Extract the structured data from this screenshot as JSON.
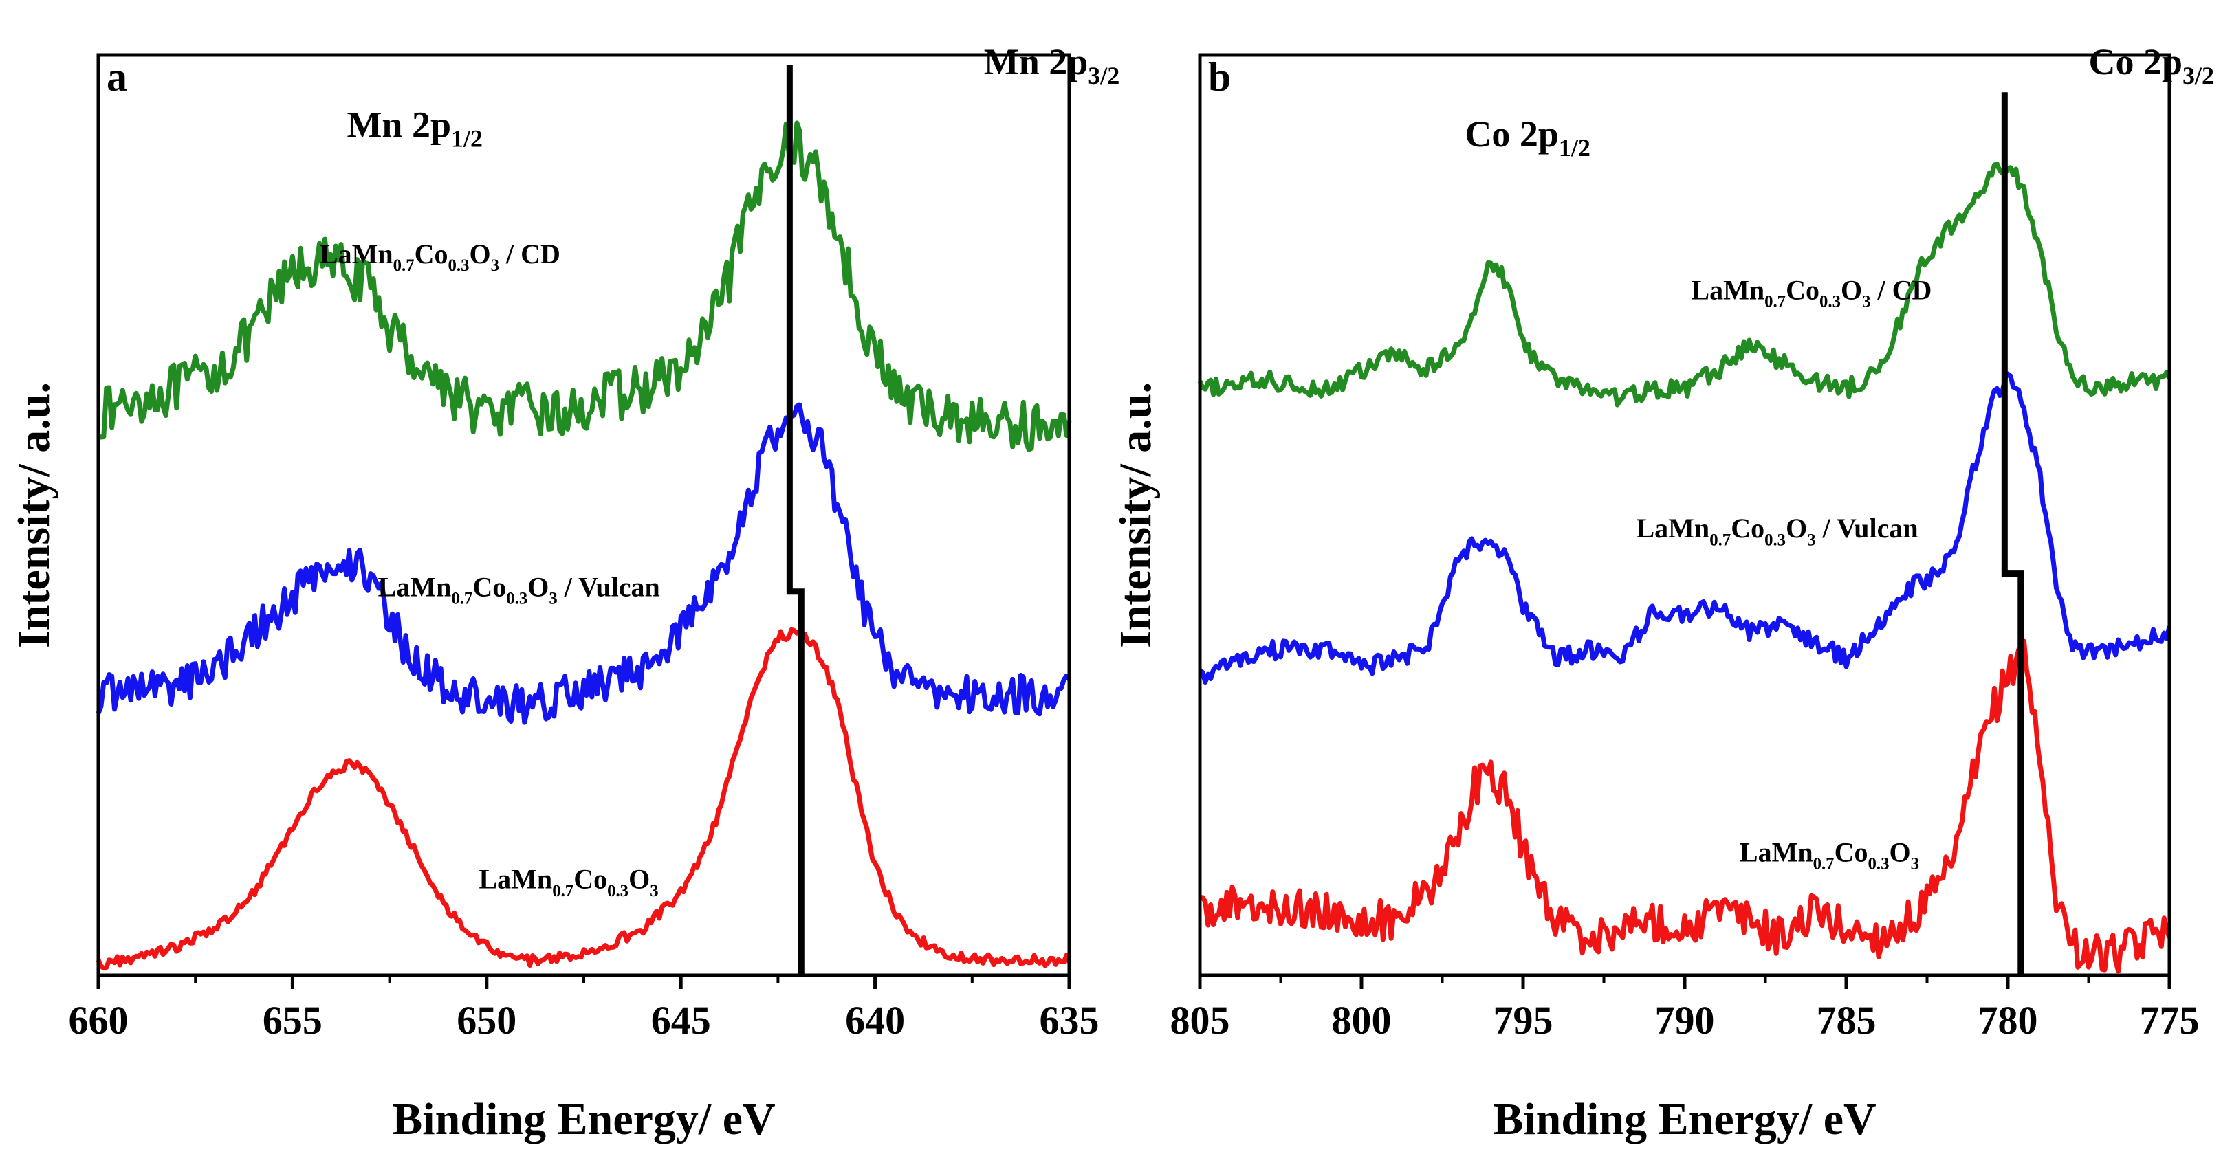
{
  "chart_data": [
    {
      "panel": "a",
      "type": "line",
      "title": "",
      "xlabel": "Binding Energy/ eV",
      "ylabel": "Intensity/ a.u.",
      "xlim": [
        660,
        635
      ],
      "ylim": [
        0,
        100
      ],
      "x_reversed": true,
      "xticks": [
        660,
        655,
        650,
        645,
        640,
        635
      ],
      "y_ticks_shown": false,
      "peak_labels": [
        {
          "id": "p12",
          "main": "Mn 2p",
          "sub": "1/2",
          "x": 653.6,
          "y": 92
        },
        {
          "id": "p32",
          "main": "Mn 2p",
          "sub": "3/2",
          "x": 637.2,
          "y": 99
        }
      ],
      "reference_marker": {
        "x_top": 642.2,
        "x_bottom": 641.9,
        "y_top": 100,
        "y_step": 41.5,
        "y_bottom": 0,
        "color": "#000000"
      },
      "series": [
        {
          "name": "LaMn0.7Co0.3O3/ CD",
          "label": {
            "main": "LaMn",
            "s1": "0.7",
            "m2": "Co",
            "s2": "0.3",
            "m3": "O",
            "s3": "3",
            "tail": "/ CD"
          },
          "label_at": {
            "x": 654.3,
            "y": 78
          },
          "color": "#228B22",
          "noise": 2.8,
          "x": [
            660,
            659,
            658,
            657,
            656,
            655.5,
            655,
            654.5,
            654,
            653.5,
            653,
            652.5,
            652,
            651,
            650,
            649,
            648,
            647,
            646,
            645,
            644.5,
            644,
            643.5,
            643,
            642.5,
            642,
            641.5,
            641,
            640.5,
            640,
            639.5,
            639,
            638,
            637,
            636,
            635
          ],
          "y": [
            61,
            63,
            64,
            66,
            70,
            74,
            77,
            78,
            78,
            77,
            75,
            71,
            68,
            64,
            61,
            62,
            61,
            63,
            64,
            66,
            69,
            73,
            80,
            86,
            91,
            91,
            88,
            82,
            74,
            68,
            64,
            62,
            61,
            60,
            60,
            59
          ]
        },
        {
          "name": "LaMn0.7Co0.3O3/ Vulcan",
          "label": {
            "main": "LaMn",
            "s1": "0.7",
            "m2": "Co",
            "s2": "0.3",
            "m3": "O",
            "s3": "3",
            "tail": "/ Vulcan"
          },
          "label_at": {
            "x": 652.8,
            "y": 41
          },
          "color": "#1414F0",
          "noise": 2.2,
          "x": [
            660,
            659,
            658,
            657,
            656,
            655,
            654.5,
            654,
            653.5,
            653,
            652.5,
            652,
            651,
            650,
            649,
            648,
            647,
            646,
            645,
            644.5,
            644,
            643.5,
            643,
            642.5,
            642,
            641.5,
            641,
            640.5,
            640,
            639.5,
            639,
            638,
            637,
            636,
            635
          ],
          "y": [
            30,
            31,
            31,
            33,
            37,
            41,
            43,
            44,
            45,
            43,
            39,
            34,
            31,
            29,
            29,
            30,
            31,
            33,
            37,
            40,
            44,
            49,
            55,
            60,
            61,
            59,
            52,
            43,
            36,
            33,
            31,
            30,
            30,
            30,
            30
          ]
        },
        {
          "name": "LaMn0.7Co0.3O3",
          "label": {
            "main": "LaMn",
            "s1": "0.7",
            "m2": "Co",
            "s2": "0.3",
            "m3": "O",
            "s3": "3",
            "tail": ""
          },
          "label_at": {
            "x": 650.2,
            "y": 8.5
          },
          "color": "#F01414",
          "noise": 0.6,
          "x": [
            660,
            659,
            658,
            657,
            656,
            655,
            654.5,
            654,
            653.5,
            653,
            652.5,
            652,
            651.5,
            651,
            650,
            649,
            648,
            647,
            646,
            645,
            644.5,
            644,
            643.5,
            643,
            642.5,
            642,
            641.5,
            641,
            640.5,
            640,
            639.5,
            639,
            638,
            637,
            636,
            635
          ],
          "y": [
            0,
            1,
            2,
            4,
            8,
            15,
            19,
            21.5,
            22.5,
            21,
            18,
            14,
            10,
            6,
            2,
            0.5,
            1,
            2,
            4,
            8,
            12,
            17,
            25,
            32,
            36.5,
            37,
            35,
            30,
            20,
            11,
            6,
            3,
            1,
            0.5,
            0.5,
            0.5
          ]
        }
      ]
    },
    {
      "panel": "b",
      "type": "line",
      "title": "",
      "xlabel": "Binding Energy/ eV",
      "ylabel": "Intensity/ a.u.",
      "xlim": [
        805,
        775
      ],
      "ylim": [
        0,
        100
      ],
      "x_reversed": true,
      "xticks": [
        805,
        800,
        795,
        790,
        785,
        780,
        775
      ],
      "y_ticks_shown": false,
      "peak_labels": [
        {
          "id": "p12",
          "main": "Co 2p",
          "sub": "1/2",
          "x": 796.8,
          "y": 91
        },
        {
          "id": "p32",
          "main": "Co 2p",
          "sub": "3/2",
          "x": 777.5,
          "y": 99
        }
      ],
      "reference_marker": {
        "x_top": 780.1,
        "x_bottom": 779.6,
        "y_top": 97,
        "y_step": 43.5,
        "y_bottom": 0,
        "color": "#000000"
      },
      "series": [
        {
          "name": "LaMn0.7Co0.3O3/ CD",
          "label": {
            "main": "LaMn",
            "s1": "0.7",
            "m2": "Co",
            "s2": "0.3",
            "m3": "O",
            "s3": "3",
            "tail": "/ CD"
          },
          "label_at": {
            "x": 789.8,
            "y": 74
          },
          "color": "#228B22",
          "noise": 1.0,
          "x": [
            805,
            803,
            801,
            800,
            799,
            798,
            797,
            796.5,
            796,
            795.5,
            795,
            794,
            793,
            792,
            791,
            790,
            789,
            788,
            787,
            786,
            785,
            784,
            783.5,
            783,
            782.5,
            782,
            781.5,
            781,
            780.5,
            780,
            779.5,
            779,
            778.5,
            778,
            777,
            776,
            775
          ],
          "y": [
            64,
            65,
            64,
            66,
            68,
            66,
            69,
            73,
            78,
            76,
            69,
            65,
            64,
            63,
            64,
            64,
            66,
            69,
            67,
            65,
            64,
            66,
            70,
            75,
            79,
            81,
            83,
            85,
            88,
            89,
            86,
            79,
            71,
            65,
            64,
            65,
            65
          ]
        },
        {
          "name": "LaMn0.7Co0.3O3/ Vulcan",
          "label": {
            "main": "LaMn",
            "s1": "0.7",
            "m2": "Co",
            "s2": "0.3",
            "m3": "O",
            "s3": "3",
            "tail": "/ Vulcan"
          },
          "label_at": {
            "x": 791.5,
            "y": 47.5
          },
          "color": "#1414F0",
          "noise": 1.0,
          "x": [
            805,
            803,
            801,
            800,
            799,
            798,
            797.5,
            797,
            796.5,
            796,
            795.5,
            795,
            794,
            793,
            792,
            791,
            790,
            789,
            788,
            787,
            786,
            785,
            784,
            783,
            782,
            781.5,
            781,
            780.5,
            780,
            779.5,
            779,
            778.5,
            778,
            777,
            776,
            775
          ],
          "y": [
            32,
            35,
            35,
            33,
            34,
            35,
            40,
            45,
            47,
            47,
            45,
            40,
            34,
            35,
            34,
            39,
            39,
            40,
            37,
            38,
            36,
            34,
            38,
            42,
            44,
            48,
            56,
            63,
            65,
            62,
            54,
            42,
            35,
            35,
            36,
            37
          ]
        },
        {
          "name": "LaMn0.7Co0.3O3",
          "label": {
            "main": "LaMn",
            "s1": "0.7",
            "m2": "Co",
            "s2": "0.3",
            "m3": "O",
            "s3": "3",
            "tail": ""
          },
          "label_at": {
            "x": 788.3,
            "y": 11.5
          },
          "color": "#F01414",
          "noise": 2.2,
          "x": [
            805,
            803,
            801,
            800,
            799,
            798,
            797,
            796.5,
            796,
            795.5,
            795,
            794,
            793,
            792,
            791,
            790,
            789,
            788,
            787,
            786,
            785,
            784,
            783,
            782,
            781.5,
            781,
            780.5,
            780,
            779.5,
            779,
            778.5,
            778,
            777,
            776,
            775
          ],
          "y": [
            6,
            7,
            6,
            5,
            5,
            8,
            14,
            20,
            21,
            19,
            13,
            5,
            3,
            4,
            5,
            4,
            6,
            5,
            3,
            6,
            4,
            3,
            5,
            9,
            14,
            22,
            28,
            32,
            36,
            22,
            8,
            2,
            1,
            2,
            5
          ]
        }
      ]
    }
  ]
}
